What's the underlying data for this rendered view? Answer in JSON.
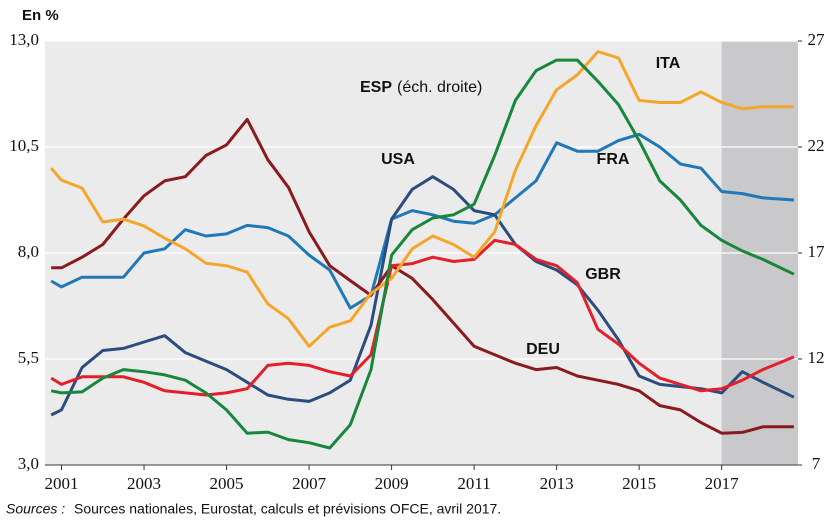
{
  "chart_data": {
    "type": "line",
    "y_label": "En %",
    "source_label": "Sources :",
    "source": "Sources nationales, Eurostat, calculs et prévisions OFCE, avril 2017.",
    "annotation": "(éch. droite)",
    "x": [
      2000.75,
      2001,
      2001.5,
      2002,
      2002.5,
      2003,
      2003.5,
      2004,
      2004.5,
      2005,
      2005.5,
      2006,
      2006.5,
      2007,
      2007.5,
      2008,
      2008.5,
      2009,
      2009.5,
      2010,
      2010.5,
      2011,
      2011.5,
      2012,
      2012.5,
      2013,
      2013.5,
      2014,
      2014.5,
      2015,
      2015.5,
      2016,
      2016.5,
      2017,
      2017.5,
      2018,
      2018.75
    ],
    "xlim": [
      2000.6,
      2018.85
    ],
    "xticks": [
      2001,
      2003,
      2005,
      2007,
      2009,
      2011,
      2013,
      2015,
      2017
    ],
    "ylim": [
      3,
      13
    ],
    "yticks": [
      {
        "value": 3,
        "label": "3,0"
      },
      {
        "value": 5.5,
        "label": "5,5"
      },
      {
        "value": 8,
        "label": "8,0"
      },
      {
        "value": 10.5,
        "label": "10,5"
      },
      {
        "value": 13,
        "label": "13,0"
      }
    ],
    "y2lim": [
      7,
      27
    ],
    "y2ticks": [
      7,
      12,
      17,
      22,
      27
    ],
    "grid": true,
    "forecast_region": [
      2017,
      2018.85
    ],
    "series": [
      {
        "name": "FRA",
        "color": "#1f78b8",
        "values": [
          7.34,
          7.2,
          7.43,
          7.43,
          7.43,
          8.0,
          8.1,
          8.55,
          8.4,
          8.45,
          8.65,
          8.6,
          8.4,
          7.95,
          7.6,
          6.7,
          7.0,
          8.8,
          9.0,
          8.9,
          8.75,
          8.7,
          8.9,
          9.3,
          9.7,
          10.6,
          10.4,
          10.4,
          10.65,
          10.8,
          10.5,
          10.1,
          10.0,
          9.45,
          9.4,
          9.3,
          9.25
        ]
      },
      {
        "name": "USA",
        "color": "#2a4d7f",
        "values": [
          4.18,
          4.3,
          5.3,
          5.7,
          5.75,
          5.9,
          6.05,
          5.65,
          5.45,
          5.25,
          4.95,
          4.65,
          4.55,
          4.5,
          4.7,
          5.0,
          6.3,
          8.8,
          9.5,
          9.8,
          9.5,
          9.0,
          8.9,
          8.2,
          7.8,
          7.6,
          7.25,
          6.65,
          5.95,
          5.1,
          4.9,
          4.85,
          4.8,
          4.7,
          5.2,
          4.95,
          4.6
        ]
      },
      {
        "name": "DEU",
        "color": "#8b1a1e",
        "values": [
          7.65,
          7.65,
          7.9,
          8.2,
          8.8,
          9.35,
          9.7,
          9.8,
          10.3,
          10.55,
          11.15,
          10.2,
          9.55,
          8.5,
          7.7,
          7.35,
          7.0,
          7.7,
          7.4,
          6.9,
          6.35,
          5.8,
          5.6,
          5.4,
          5.25,
          5.3,
          5.1,
          5.0,
          4.9,
          4.75,
          4.4,
          4.3,
          4.0,
          3.75,
          3.77,
          3.9,
          3.9
        ]
      },
      {
        "name": "GBR",
        "color": "#e3202a",
        "values": [
          5.05,
          4.9,
          5.08,
          5.08,
          5.08,
          4.95,
          4.75,
          4.7,
          4.65,
          4.7,
          4.8,
          5.35,
          5.4,
          5.35,
          5.2,
          5.1,
          5.6,
          7.7,
          7.75,
          7.9,
          7.8,
          7.85,
          8.3,
          8.2,
          7.85,
          7.7,
          7.3,
          6.2,
          5.85,
          5.4,
          5.05,
          4.9,
          4.75,
          4.8,
          5.0,
          5.25,
          5.55
        ]
      },
      {
        "name": "ITA",
        "color": "#f5a62a",
        "values": [
          10.0,
          9.72,
          9.53,
          8.73,
          8.8,
          8.64,
          8.35,
          8.1,
          7.76,
          7.7,
          7.55,
          6.8,
          6.45,
          5.8,
          6.25,
          6.4,
          7.05,
          7.4,
          8.1,
          8.4,
          8.2,
          7.9,
          8.5,
          9.95,
          11.0,
          11.85,
          12.2,
          12.75,
          12.6,
          11.6,
          11.55,
          11.55,
          11.8,
          11.55,
          11.4,
          11.45,
          11.45
        ]
      },
      {
        "name": "ESP",
        "color": "#17873b",
        "axis": "y2",
        "values": [
          10.5,
          10.4,
          10.45,
          11.1,
          11.5,
          11.4,
          11.25,
          11.0,
          10.4,
          9.6,
          8.5,
          8.55,
          8.2,
          8.05,
          7.8,
          8.9,
          11.5,
          16.9,
          18.1,
          18.65,
          18.8,
          19.3,
          21.6,
          24.2,
          25.6,
          26.1,
          26.1,
          25.1,
          24.0,
          22.3,
          20.4,
          19.5,
          18.3,
          17.6,
          17.1,
          16.7,
          16.0
        ]
      }
    ]
  }
}
